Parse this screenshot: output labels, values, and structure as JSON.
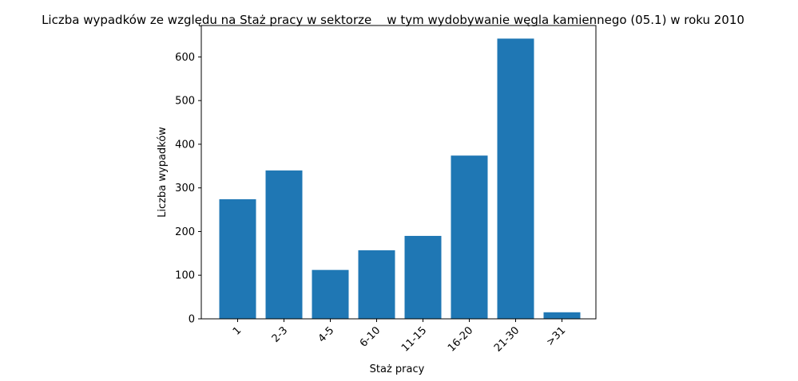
{
  "chart_data": {
    "type": "bar",
    "title": "Liczba wypadków ze względu na Staż pracy w sektorze    w tym wydobywanie węgla kamiennego (05.1) w roku 2010",
    "xlabel": "Staż pracy",
    "ylabel": "Liczba wypadków",
    "categories": [
      "1",
      "2-3",
      "4-5",
      "6-10",
      "11-15",
      "16-20",
      "21-30",
      ">31"
    ],
    "values": [
      274,
      340,
      112,
      157,
      190,
      374,
      642,
      15
    ],
    "ylim": [
      0,
      672
    ],
    "yticks": [
      0,
      100,
      200,
      300,
      400,
      500,
      600
    ],
    "bar_color": "#1f77b4",
    "grid": false,
    "legend": "none"
  }
}
